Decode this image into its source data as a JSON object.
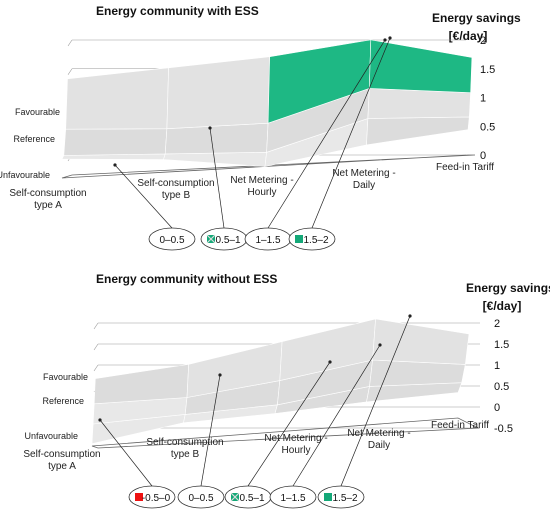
{
  "chart_data": [
    {
      "type": "surface3d",
      "title": "Energy community with ESS",
      "zlabel_line1": "Energy savings",
      "zlabel_line2": "[€/day]",
      "zticks": [
        "2",
        "1.5",
        "1",
        "0.5",
        "0"
      ],
      "zlim": [
        0,
        2
      ],
      "yticks": [
        "Favourable",
        "Reference",
        "Unfavourable"
      ],
      "xcategories": [
        {
          "line1": "Self-consumption",
          "line2": "type A"
        },
        {
          "line1": "Self-consumption",
          "line2": "type B"
        },
        {
          "line1": "Net Metering -",
          "line2": "Hourly"
        },
        {
          "line1": "Net Metering -",
          "line2": "Daily"
        },
        {
          "line1": "Feed-in Tariff",
          "line2": ""
        }
      ],
      "legend": [
        {
          "label": "0–0.5",
          "color": "#e6e6e6",
          "marker": "none"
        },
        {
          "label": "0.5–1",
          "color": "#cfcfcf",
          "marker": "hatch"
        },
        {
          "label": "1–1.5",
          "color": "#ececec",
          "marker": "none"
        },
        {
          "label": "1.5–2",
          "color": "#14a878",
          "marker": "square"
        }
      ],
      "z": [
        [
          0.6,
          0.5,
          0.9,
          1.6
        ],
        [
          0.4,
          0.4,
          0.8,
          1.7
        ],
        [
          0.0,
          0.3,
          0.8,
          1.8
        ],
        [
          0.5,
          1.0,
          1.4,
          2.0
        ],
        [
          0.8,
          0.9,
          1.2,
          1.6
        ]
      ]
    },
    {
      "type": "surface3d",
      "title": "Energy community without ESS",
      "zlabel_line1": "Energy savings",
      "zlabel_line2": "[€/day]",
      "zticks": [
        "2",
        "1.5",
        "1",
        "0.5",
        "0",
        "-0.5"
      ],
      "zlim": [
        -0.5,
        2
      ],
      "yticks": [
        "Favourable",
        "Reference",
        "Unfavourable"
      ],
      "xcategories": [
        {
          "line1": "Self-consumption",
          "line2": "type A"
        },
        {
          "line1": "Self-consumption",
          "line2": "type B"
        },
        {
          "line1": "Net Metering -",
          "line2": "Hourly"
        },
        {
          "line1": "Net Metering -",
          "line2": "Daily"
        },
        {
          "line1": "Feed-in Tariff",
          "line2": ""
        }
      ],
      "legend": [
        {
          "label": "-0.5–0",
          "color": "#ee1111",
          "marker": "square"
        },
        {
          "label": "0–0.5",
          "color": "#e6e6e6",
          "marker": "none"
        },
        {
          "label": "0.5–1",
          "color": "#cfcfcf",
          "marker": "hatch"
        },
        {
          "label": "1–1.5",
          "color": "#ececec",
          "marker": "none"
        },
        {
          "label": "1.5–2",
          "color": "#14a878",
          "marker": "square"
        }
      ],
      "z": [
        [
          -0.4,
          0.2,
          0.6,
          1.0
        ],
        [
          0.2,
          0.3,
          0.6,
          1.2
        ],
        [
          0.3,
          0.4,
          0.9,
          1.6
        ],
        [
          0.5,
          0.8,
          1.3,
          2.0
        ],
        [
          0.6,
          0.7,
          1.0,
          1.5
        ]
      ]
    }
  ]
}
